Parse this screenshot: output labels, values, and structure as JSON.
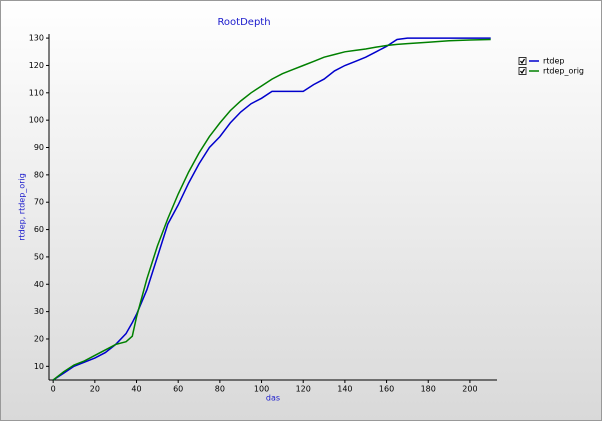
{
  "chart_data": {
    "type": "line",
    "title": "RootDepth",
    "xlabel": "das",
    "ylabel": "rtdep, rtdep_orig",
    "x": [
      0,
      5,
      10,
      15,
      20,
      25,
      30,
      35,
      38,
      40,
      45,
      50,
      55,
      60,
      65,
      70,
      75,
      80,
      85,
      90,
      95,
      100,
      105,
      110,
      115,
      120,
      125,
      130,
      135,
      140,
      145,
      150,
      155,
      160,
      165,
      170,
      180,
      190,
      200,
      210
    ],
    "series": [
      {
        "name": "rtdep",
        "color": "#0000cc",
        "values": [
          5,
          7.5,
          10,
          11.5,
          13,
          15,
          18,
          22,
          26,
          29,
          38,
          50,
          62,
          69,
          77,
          84,
          90,
          94,
          99,
          103,
          106,
          108,
          110.5,
          110.5,
          110.5,
          110.5,
          113,
          115,
          118,
          120,
          121.5,
          123,
          125,
          127,
          129.5,
          130,
          130,
          130,
          130,
          130
        ]
      },
      {
        "name": "rtdep_orig",
        "color": "#008000",
        "values": [
          5,
          8,
          10.5,
          12,
          14,
          16,
          18,
          19,
          21,
          28,
          42,
          54,
          64,
          73,
          81,
          88,
          94,
          99,
          103.5,
          107,
          110,
          112.5,
          115,
          117,
          118.5,
          120,
          121.5,
          123,
          124,
          125,
          125.5,
          126,
          126.7,
          127.3,
          127.7,
          128,
          128.5,
          129,
          129.3,
          129.5
        ]
      }
    ],
    "xlim": [
      -2,
      213
    ],
    "ylim": [
      5,
      131.5
    ],
    "xticks": [
      0,
      20,
      40,
      60,
      80,
      100,
      120,
      140,
      160,
      180,
      200
    ],
    "yticks": [
      10,
      20,
      30,
      40,
      50,
      60,
      70,
      80,
      90,
      100,
      110,
      120,
      130
    ],
    "legend": "right",
    "grid": false
  }
}
